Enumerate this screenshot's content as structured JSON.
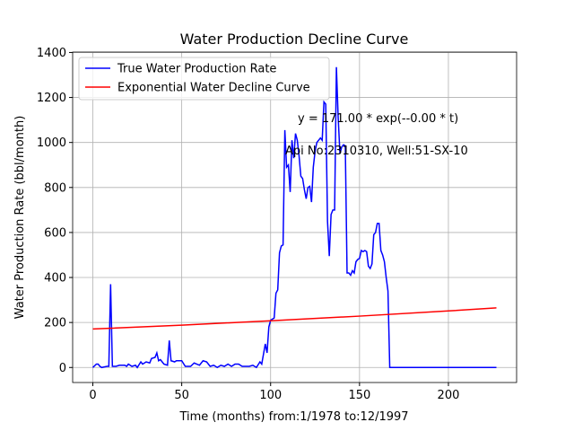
{
  "chart_data": {
    "type": "line",
    "title": "Water Production Decline Curve",
    "xlabel": "Time (months) from:1/1978 to:12/1997",
    "ylabel": "Water Production Rate (bbl/month)",
    "annotations": [
      "y = 171.00 * exp(--0.00 * t)",
      "Api No:2310310, Well:51-SX-10"
    ],
    "xlim": [
      -11.35,
      238.35
    ],
    "xticks": [
      0,
      50,
      100,
      150,
      200
    ],
    "ylim": [
      -66.75,
      1401.75
    ],
    "yticks": [
      0,
      200,
      400,
      600,
      800,
      1000,
      1200,
      1400
    ],
    "grid": true,
    "legend": "upper left",
    "series": [
      {
        "name": "True Water Production Rate",
        "color": "#0000ff",
        "x": [
          0,
          2,
          3,
          4,
          5,
          8,
          9,
          10,
          11,
          13,
          15,
          18,
          19,
          20,
          22,
          24,
          25,
          27,
          28,
          30,
          32,
          33,
          35,
          36,
          37,
          38,
          40,
          42,
          43,
          44,
          46,
          47,
          50,
          52,
          55,
          57,
          60,
          62,
          64,
          66,
          68,
          70,
          72,
          74,
          76,
          78,
          80,
          82,
          84,
          88,
          90,
          92,
          94,
          95,
          97,
          98,
          99,
          100,
          102,
          103,
          104,
          105,
          106,
          107,
          108,
          109,
          110,
          111,
          112,
          113,
          114,
          115,
          116,
          117,
          118,
          119,
          120,
          121,
          122,
          123,
          124,
          125,
          126,
          127,
          128,
          129,
          130,
          131,
          132,
          133,
          134,
          135,
          136,
          137,
          138,
          139,
          140,
          141,
          142,
          143,
          144,
          145,
          146,
          147,
          148,
          149,
          150,
          151,
          152,
          153,
          154,
          155,
          156,
          157,
          158,
          159,
          160,
          161,
          162,
          163,
          164,
          165,
          166,
          167,
          227
        ],
        "values": [
          0,
          15,
          15,
          5,
          0,
          5,
          5,
          370,
          5,
          5,
          10,
          10,
          5,
          15,
          5,
          10,
          0,
          25,
          15,
          25,
          20,
          40,
          45,
          65,
          30,
          35,
          15,
          10,
          120,
          30,
          25,
          30,
          30,
          5,
          5,
          20,
          10,
          30,
          25,
          5,
          10,
          0,
          10,
          5,
          15,
          5,
          15,
          15,
          5,
          5,
          10,
          0,
          25,
          15,
          105,
          65,
          180,
          210,
          220,
          330,
          345,
          510,
          540,
          545,
          1055,
          890,
          900,
          780,
          1010,
          930,
          1040,
          1010,
          940,
          850,
          840,
          790,
          750,
          800,
          805,
          735,
          890,
          960,
          1000,
          1010,
          1020,
          1010,
          1180,
          1170,
          650,
          495,
          680,
          700,
          700,
          1335,
          1110,
          950,
          980,
          990,
          985,
          420,
          420,
          410,
          430,
          420,
          470,
          480,
          485,
          520,
          515,
          520,
          515,
          450,
          440,
          460,
          590,
          600,
          640,
          640,
          520,
          500,
          470,
          400,
          340,
          0,
          0
        ]
      },
      {
        "name": "Exponential Water Decline Curve",
        "color": "#ff0000",
        "x": [
          0,
          50,
          100,
          150,
          200,
          227
        ],
        "values": [
          171,
          188.3,
          207.4,
          228.3,
          251.4,
          265
        ]
      }
    ]
  }
}
